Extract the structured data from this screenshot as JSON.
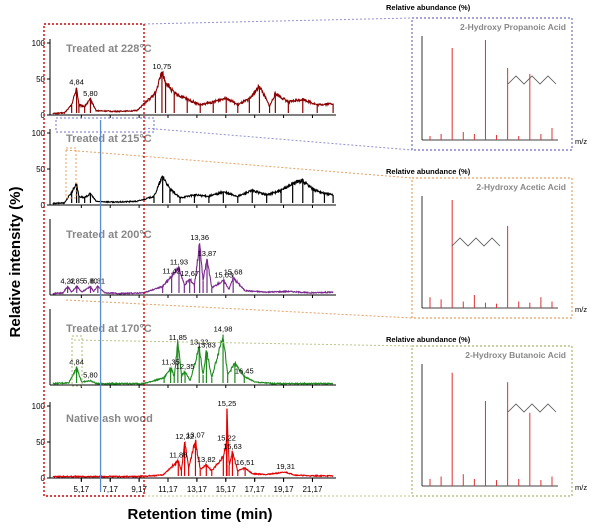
{
  "figure": {
    "ylabel": "Relative intensity (%)",
    "xlabel": "Retention time (min)"
  },
  "chart_data": [
    {
      "type": "line",
      "title": "Treated at 228°C",
      "color": "#8b0000",
      "xlim": [
        3.0,
        22.8
      ],
      "ylim": [
        0,
        100
      ],
      "yticks": [
        "0",
        "50",
        "100"
      ],
      "x": [
        3.2,
        4.0,
        4.5,
        4.84,
        5.0,
        5.4,
        5.8,
        6.2,
        7.5,
        9.0,
        10.3,
        10.75,
        11.0,
        11.6,
        12.5,
        13.4,
        14.3,
        15.2,
        16.0,
        16.8,
        17.5,
        18.2,
        18.6,
        19.5,
        20.5,
        21.5,
        22.6
      ],
      "y": [
        2,
        3,
        14,
        38,
        14,
        12,
        22,
        6,
        5,
        6,
        30,
        60,
        46,
        30,
        22,
        14,
        18,
        24,
        14,
        22,
        40,
        12,
        30,
        18,
        22,
        14,
        16
      ],
      "peak_labels": [
        {
          "x": 4.84,
          "y": 38,
          "text": "4,84"
        },
        {
          "x": 5.8,
          "y": 22,
          "text": "5,80"
        },
        {
          "x": 10.75,
          "y": 60,
          "text": "10,75"
        }
      ]
    },
    {
      "type": "line",
      "title": "Treated at 215°C",
      "color": "#000000",
      "xlim": [
        3.0,
        22.8
      ],
      "ylim": [
        0,
        100
      ],
      "yticks": [
        "0",
        "50",
        "100"
      ],
      "x": [
        3.2,
        4.0,
        4.5,
        4.84,
        5.0,
        5.4,
        5.8,
        6.2,
        7.5,
        9.0,
        10.2,
        10.8,
        11.3,
        12.0,
        13.0,
        14.0,
        15.0,
        16.0,
        17.0,
        18.0,
        19.0,
        19.8,
        20.5,
        21.2,
        22.0,
        22.6
      ],
      "y": [
        2,
        3,
        18,
        30,
        12,
        10,
        16,
        5,
        4,
        5,
        12,
        40,
        22,
        10,
        14,
        12,
        18,
        12,
        20,
        14,
        20,
        30,
        34,
        22,
        16,
        14
      ],
      "peak_labels": []
    },
    {
      "type": "line",
      "title": "Treated at 200°C",
      "color": "#7a2a8c",
      "xlim": [
        3.0,
        22.8
      ],
      "ylim": [
        0,
        100
      ],
      "yticks": [],
      "x": [
        3.2,
        3.9,
        4.22,
        4.5,
        4.85,
        5.2,
        5.8,
        6.0,
        6.31,
        6.8,
        8.0,
        9.5,
        10.8,
        11.42,
        11.93,
        12.3,
        12.67,
        13.0,
        13.36,
        13.6,
        13.87,
        14.2,
        15.03,
        15.4,
        15.68,
        16.5,
        18.0,
        19.5,
        21.0,
        22.6
      ],
      "y": [
        2,
        3,
        12,
        4,
        12,
        4,
        12,
        5,
        12,
        3,
        2,
        3,
        12,
        26,
        38,
        14,
        22,
        14,
        72,
        20,
        50,
        10,
        20,
        8,
        24,
        6,
        4,
        5,
        3,
        4
      ],
      "peak_labels": [
        {
          "x": 4.22,
          "y": 12,
          "text": "4,22"
        },
        {
          "x": 4.85,
          "y": 12,
          "text": "4,85"
        },
        {
          "x": 5.8,
          "y": 12,
          "text": "5,80"
        },
        {
          "x": 6.31,
          "y": 12,
          "text": "6,31"
        },
        {
          "x": 11.42,
          "y": 26,
          "text": "11,42"
        },
        {
          "x": 11.93,
          "y": 38,
          "text": "11,93"
        },
        {
          "x": 12.67,
          "y": 22,
          "text": "12,67"
        },
        {
          "x": 13.36,
          "y": 72,
          "text": "13,36"
        },
        {
          "x": 13.87,
          "y": 50,
          "text": "13,87"
        },
        {
          "x": 15.03,
          "y": 20,
          "text": "15,03"
        },
        {
          "x": 15.68,
          "y": 24,
          "text": "15,68"
        }
      ]
    },
    {
      "type": "line",
      "title": "Treated at 170°C",
      "color": "#1e8a1e",
      "xlim": [
        3.0,
        22.8
      ],
      "ylim": [
        0,
        100
      ],
      "yticks": [],
      "x": [
        3.2,
        4.3,
        4.84,
        5.2,
        5.8,
        6.2,
        7.5,
        9.5,
        10.9,
        11.35,
        11.6,
        11.85,
        12.1,
        12.35,
        12.7,
        13.33,
        13.6,
        13.83,
        14.2,
        14.98,
        15.3,
        15.8,
        16.45,
        17.2,
        18.5,
        20.0,
        22.6
      ],
      "y": [
        2,
        3,
        24,
        4,
        6,
        2,
        2,
        2,
        10,
        24,
        12,
        58,
        14,
        18,
        6,
        52,
        14,
        48,
        10,
        70,
        14,
        30,
        12,
        4,
        2,
        2,
        2
      ],
      "peak_labels": [
        {
          "x": 4.84,
          "y": 24,
          "text": "4,84"
        },
        {
          "x": 5.8,
          "y": 6,
          "text": "5,80"
        },
        {
          "x": 11.35,
          "y": 24,
          "text": "11,35"
        },
        {
          "x": 11.85,
          "y": 58,
          "text": "11,85"
        },
        {
          "x": 12.35,
          "y": 18,
          "text": "12,35"
        },
        {
          "x": 13.33,
          "y": 52,
          "text": "13,33"
        },
        {
          "x": 13.83,
          "y": 48,
          "text": "13,83"
        },
        {
          "x": 14.98,
          "y": 70,
          "text": "14,98"
        },
        {
          "x": 16.45,
          "y": 12,
          "text": "16,45"
        }
      ]
    },
    {
      "type": "line",
      "title": "Native ash wood",
      "color": "#e00000",
      "xlim": [
        3.0,
        22.8
      ],
      "ylim": [
        0,
        100
      ],
      "yticks": [
        "0",
        "50",
        "100"
      ],
      "x": [
        3.2,
        5.0,
        7.0,
        9.0,
        10.8,
        11.88,
        12.1,
        12.32,
        12.6,
        13.07,
        13.4,
        13.82,
        14.2,
        15.0,
        15.22,
        15.25,
        15.4,
        15.63,
        16.0,
        16.51,
        17.0,
        18.0,
        19.31,
        20.0,
        21.0,
        22.6
      ],
      "y": [
        2,
        2,
        2,
        2,
        4,
        24,
        10,
        50,
        14,
        52,
        12,
        18,
        10,
        30,
        48,
        96,
        18,
        36,
        10,
        14,
        6,
        5,
        8,
        4,
        3,
        3
      ],
      "peak_labels": [
        {
          "x": 11.88,
          "y": 24,
          "text": "11,88"
        },
        {
          "x": 12.32,
          "y": 50,
          "text": "12,32"
        },
        {
          "x": 13.07,
          "y": 52,
          "text": "13,07"
        },
        {
          "x": 13.82,
          "y": 18,
          "text": "13,82"
        },
        {
          "x": 15.22,
          "y": 48,
          "text": "15,22"
        },
        {
          "x": 15.25,
          "y": 96,
          "text": "15,25"
        },
        {
          "x": 15.63,
          "y": 36,
          "text": "15,63"
        },
        {
          "x": 16.51,
          "y": 14,
          "text": "16,51"
        },
        {
          "x": 19.31,
          "y": 8,
          "text": "19,31"
        }
      ]
    }
  ],
  "x_ticks": [
    "5,17",
    "7,17",
    "9,17",
    "11,17",
    "13,17",
    "15,17",
    "17,17",
    "19,17",
    "21,17"
  ],
  "x_tick_values": [
    5.17,
    7.17,
    9.17,
    11.17,
    13.17,
    15.17,
    17.17,
    19.17,
    21.17
  ],
  "highlight_x": 6.5,
  "spectra": [
    {
      "type": "bar",
      "header": "Relative abundance (%)",
      "compound": "2-Hydroxy Propanoic Acid",
      "xlabel": "m/z",
      "border_color": "#7070c8",
      "link_color": "#9090d8",
      "values": [
        4,
        6,
        92,
        8,
        6,
        100,
        5,
        72,
        4,
        66,
        6,
        12
      ]
    },
    {
      "type": "bar",
      "header": "Relative abundance (%)",
      "compound": "2-Hydroxy Acetic Acid",
      "xlabel": "m/z",
      "border_color": "#e8a060",
      "link_color": "#e8a060",
      "values": [
        10,
        8,
        100,
        6,
        12,
        5,
        4,
        76,
        6,
        5,
        10,
        6
      ]
    },
    {
      "type": "bar",
      "header": "Relative abundance (%)",
      "compound": "2-Hydroxy Butanoic Acid",
      "xlabel": "m/z",
      "border_color": "#a8b870",
      "link_color": "#b8c888",
      "values": [
        6,
        8,
        96,
        10,
        6,
        72,
        5,
        88,
        6,
        62,
        5,
        8
      ]
    }
  ]
}
